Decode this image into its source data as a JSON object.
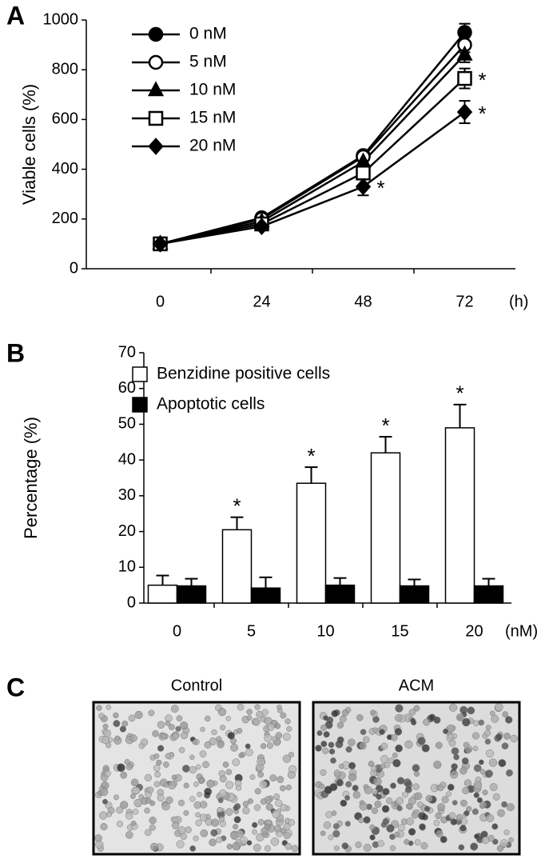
{
  "chart_data": [
    {
      "type": "line",
      "panel_label": "A",
      "y_label": "Viable cells (%)",
      "x_unit": "(h)",
      "categories": [
        "0",
        "24",
        "48",
        "72"
      ],
      "ylim": [
        0,
        1000
      ],
      "yticks": [
        0,
        200,
        400,
        600,
        800,
        1000
      ],
      "error_direction": "both",
      "series": [
        {
          "name": "0 nM",
          "color": "#000000",
          "marker": "circle",
          "values": [
            100,
            205,
            455,
            950
          ],
          "errors": [
            12,
            15,
            18,
            35
          ],
          "annotations": [
            null,
            null,
            null,
            null
          ]
        },
        {
          "name": "5 nM",
          "color": "#000000",
          "marker": "circle-open",
          "values": [
            100,
            200,
            450,
            900
          ],
          "errors": [
            12,
            15,
            18,
            30
          ],
          "annotations": [
            null,
            null,
            null,
            null
          ]
        },
        {
          "name": "10 nM",
          "color": "#000000",
          "marker": "triangle",
          "values": [
            100,
            190,
            430,
            860
          ],
          "errors": [
            12,
            15,
            18,
            30
          ],
          "annotations": [
            null,
            null,
            null,
            null
          ]
        },
        {
          "name": "15 nM",
          "color": "#000000",
          "marker": "square-open",
          "values": [
            100,
            180,
            385,
            765
          ],
          "errors": [
            12,
            15,
            20,
            40
          ],
          "annotations": [
            null,
            null,
            null,
            "*"
          ]
        },
        {
          "name": "20 nM",
          "color": "#000000",
          "marker": "diamond",
          "values": [
            100,
            170,
            330,
            630
          ],
          "errors": [
            12,
            15,
            35,
            45
          ],
          "annotations": [
            null,
            null,
            "*",
            "*"
          ]
        }
      ]
    },
    {
      "type": "bar",
      "panel_label": "B",
      "y_label": "Percentage (%)",
      "x_unit": "(nM)",
      "categories": [
        "0",
        "5",
        "10",
        "15",
        "20"
      ],
      "ylim": [
        0,
        70
      ],
      "yticks": [
        0,
        10,
        20,
        30,
        40,
        50,
        60,
        70
      ],
      "error_direction": "up",
      "series": [
        {
          "name": "Benzidine positive cells",
          "color": "#ffffff",
          "values": [
            5,
            20.5,
            33.5,
            42,
            49
          ],
          "errors": [
            2.7,
            3.5,
            4.5,
            4.5,
            6.5
          ],
          "annotations": [
            null,
            "*",
            "*",
            "*",
            "*"
          ]
        },
        {
          "name": "Apoptotic cells",
          "color": "#000000",
          "values": [
            4.8,
            4.2,
            5,
            4.8,
            4.8
          ],
          "errors": [
            2,
            3,
            2,
            1.8,
            2
          ],
          "annotations": [
            null,
            null,
            null,
            null,
            null
          ]
        }
      ]
    }
  ],
  "panel_c": {
    "panel_label": "C",
    "images": [
      {
        "title": "Control"
      },
      {
        "title": "ACM"
      }
    ]
  }
}
